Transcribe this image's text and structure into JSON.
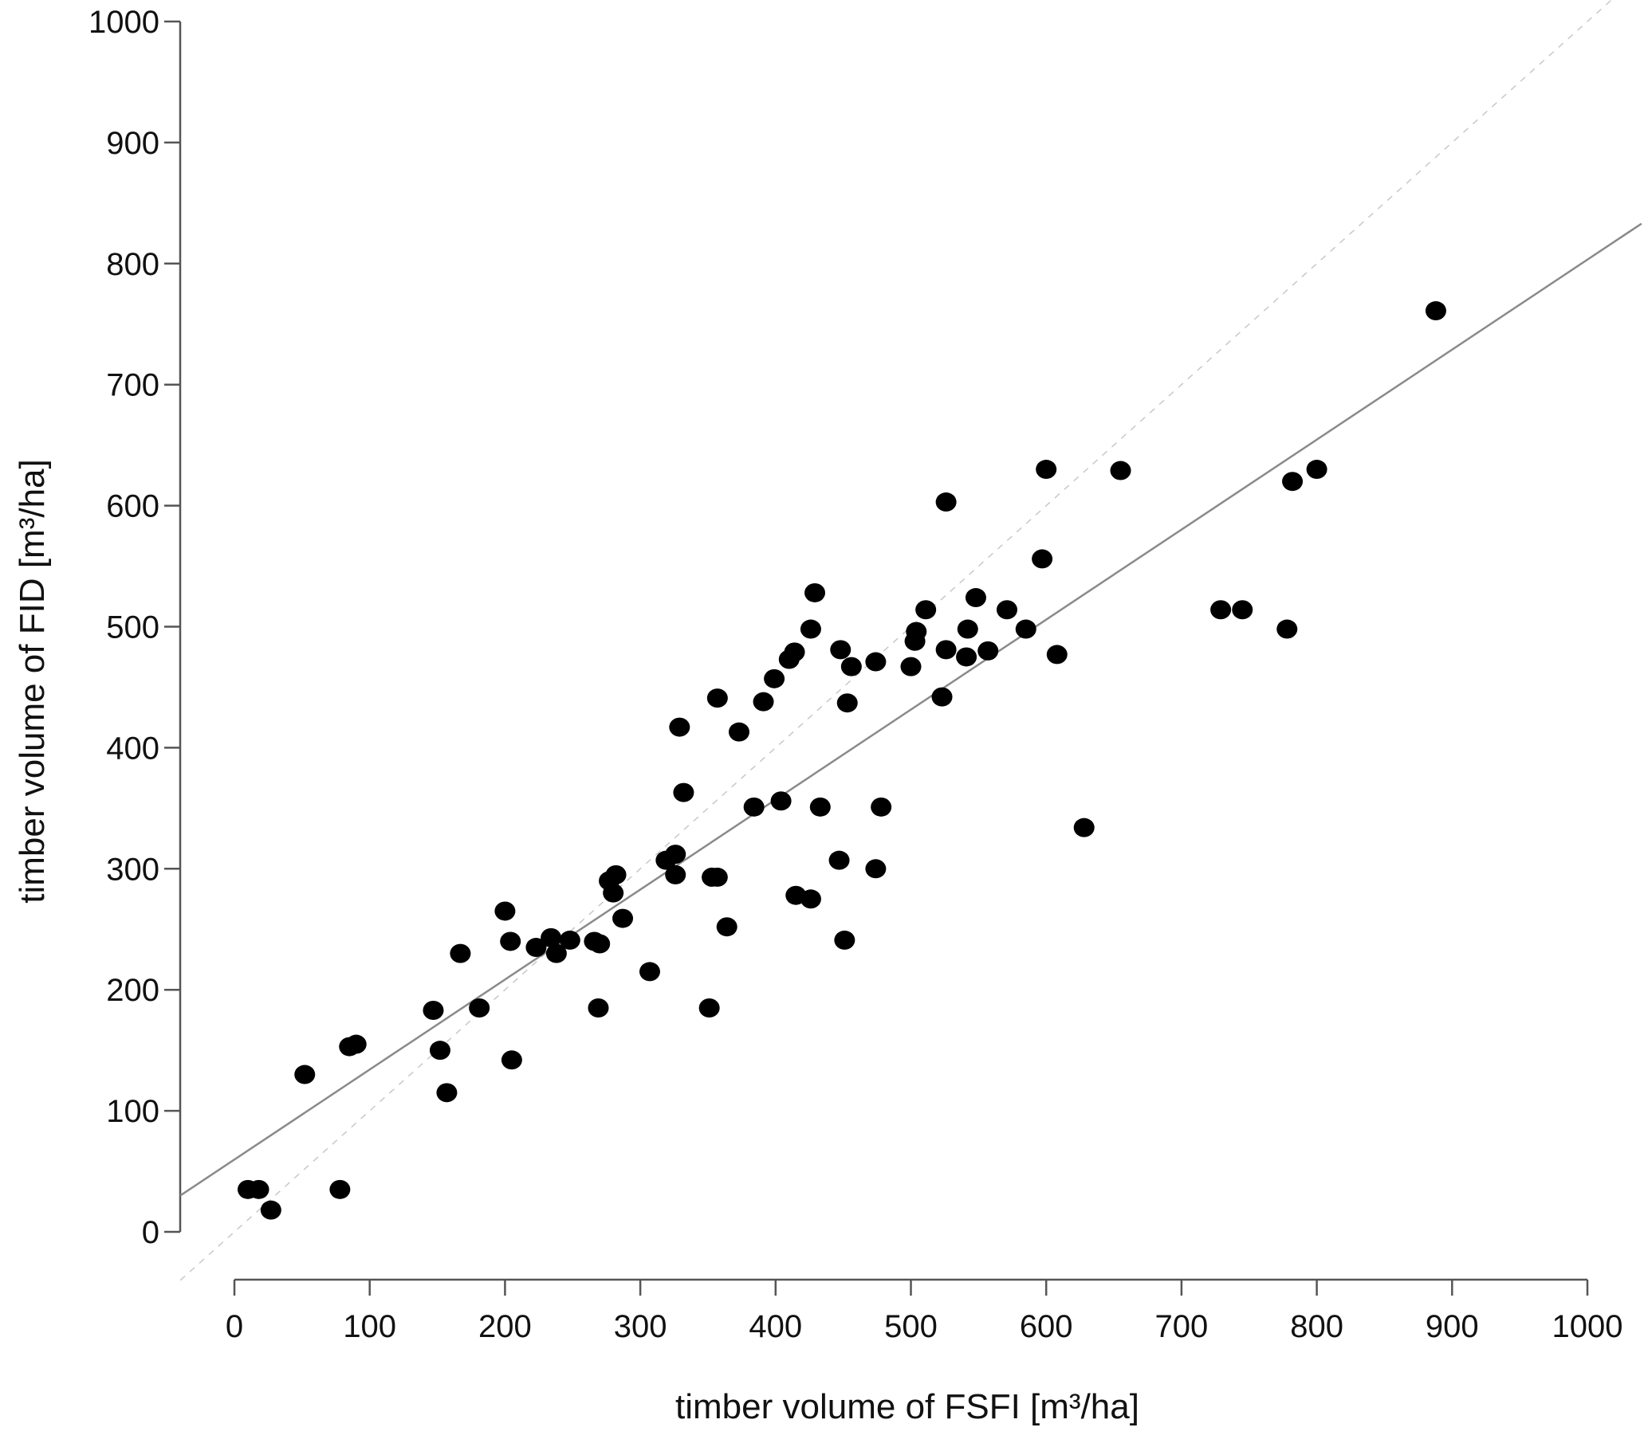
{
  "chart_data": {
    "type": "scatter",
    "title": "",
    "xlabel": "timber volume of FSFI [m³/ha]",
    "ylabel": "timber volume of FID [m³/ha]",
    "xlim": [
      0,
      1000
    ],
    "ylim": [
      0,
      1000
    ],
    "xticks": [
      0,
      100,
      200,
      300,
      400,
      500,
      600,
      700,
      800,
      900,
      1000
    ],
    "yticks": [
      0,
      100,
      200,
      300,
      400,
      500,
      600,
      700,
      800,
      900,
      1000
    ],
    "grid": false,
    "legend": "none",
    "fit_line": {
      "x": [
        -40,
        1040
      ],
      "y": [
        30,
        833
      ]
    },
    "identity_line": {
      "x": [
        -40,
        1040
      ],
      "y": [
        -40,
        1040
      ]
    },
    "points": {
      "x": [
        10,
        18,
        27,
        52,
        78,
        85,
        90,
        147,
        152,
        157,
        167,
        181,
        200,
        204,
        205,
        223,
        234,
        238,
        248,
        266,
        269,
        270,
        277,
        280,
        282,
        287,
        307,
        319,
        326,
        326,
        329,
        332,
        351,
        353,
        357,
        357,
        364,
        373,
        384,
        391,
        399,
        404,
        410,
        414,
        415,
        426,
        426,
        429,
        433,
        447,
        448,
        451,
        453,
        456,
        474,
        474,
        478,
        500,
        503,
        504,
        511,
        523,
        526,
        526,
        541,
        542,
        548,
        557,
        571,
        585,
        597,
        600,
        608,
        628,
        655,
        729,
        745,
        778,
        782,
        800,
        888
      ],
      "y": [
        35,
        35,
        18,
        130,
        35,
        153,
        155,
        183,
        150,
        115,
        230,
        185,
        265,
        240,
        142,
        235,
        243,
        230,
        241,
        240,
        185,
        238,
        290,
        280,
        295,
        259,
        215,
        307,
        295,
        312,
        417,
        363,
        185,
        293,
        441,
        293,
        252,
        413,
        351,
        438,
        457,
        356,
        473,
        479,
        278,
        275,
        498,
        528,
        351,
        307,
        481,
        241,
        437,
        467,
        300,
        471,
        351,
        467,
        488,
        496,
        514,
        442,
        481,
        603,
        475,
        498,
        524,
        480,
        514,
        498,
        556,
        630,
        477,
        334,
        629,
        514,
        514,
        498,
        620,
        630,
        761
      ]
    }
  }
}
